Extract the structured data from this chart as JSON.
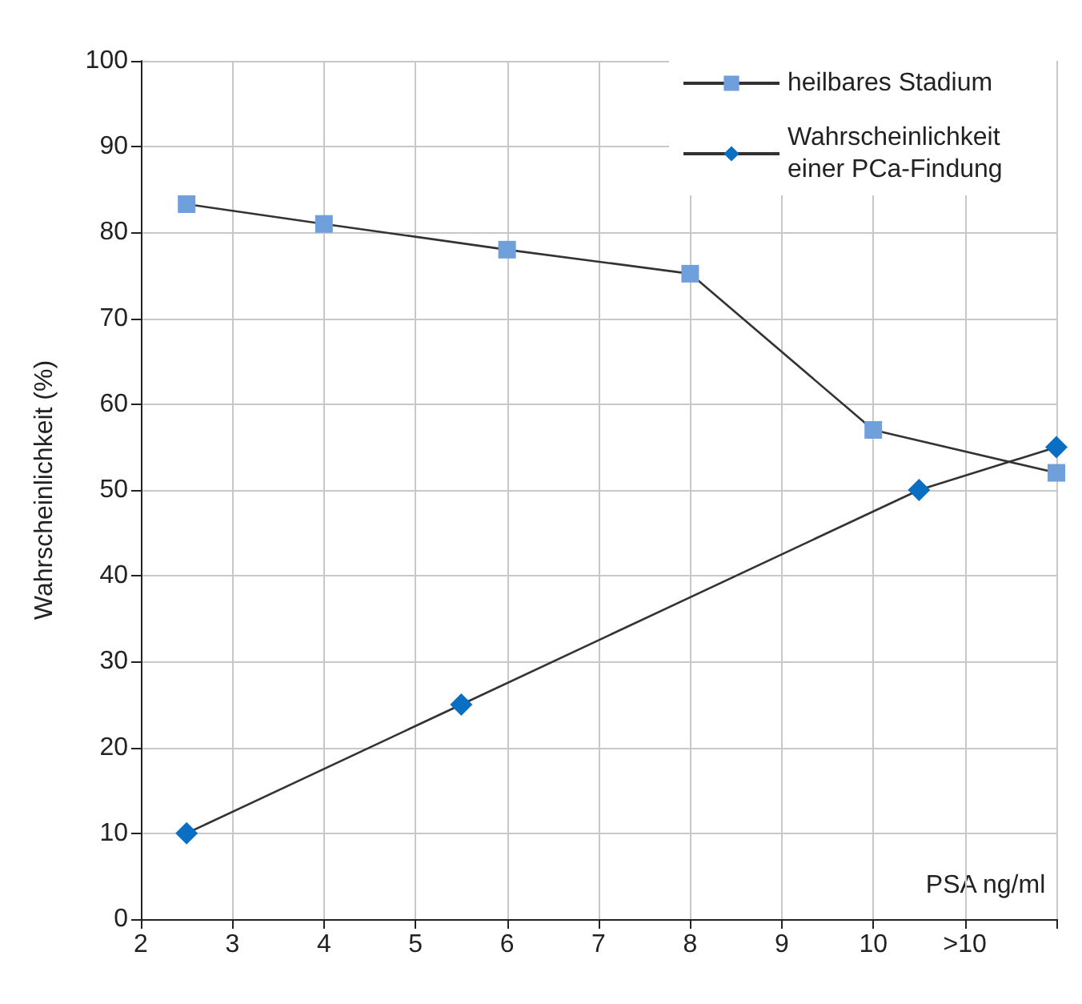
{
  "chart_data": {
    "type": "line",
    "xlabel": "PSA ng/ml",
    "ylabel": "Wahrscheinlichkeit (%)",
    "xlim": [
      2,
      12
    ],
    "xticks": [
      2,
      3,
      4,
      5,
      6,
      7,
      8,
      9,
      10,
      {
        "value": 11,
        "label": ">10"
      },
      {
        "value": 12,
        "label": null
      }
    ],
    "ylim": [
      0,
      100
    ],
    "yticks": [
      0,
      10,
      20,
      30,
      40,
      50,
      60,
      70,
      80,
      90,
      100
    ],
    "grid": true,
    "legend": "top right",
    "line_style": "solid",
    "series": [
      {
        "name": "heilbares Stadium",
        "color": "#6fa0dc",
        "marker": "square",
        "x": [
          2.5,
          4,
          6,
          8,
          10,
          12
        ],
        "values": [
          83.3,
          81,
          78,
          75.2,
          57,
          52
        ]
      },
      {
        "name": "Wahrscheinlichkeit einer PCa-Findung",
        "color": "#0a6fc2",
        "marker": "diamond",
        "x": [
          2.5,
          5.5,
          10.5,
          12
        ],
        "values": [
          10,
          25,
          50,
          55
        ]
      }
    ]
  }
}
